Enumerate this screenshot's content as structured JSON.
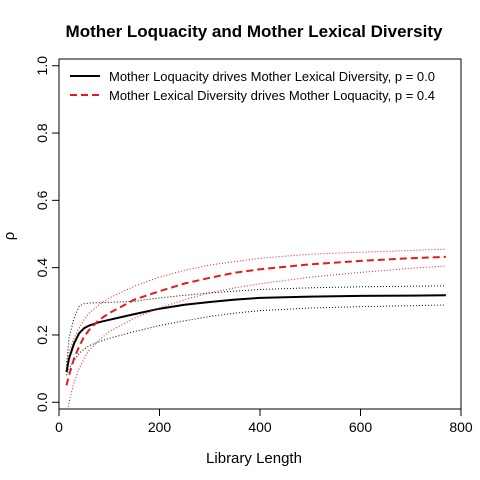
{
  "chart_data": {
    "type": "line",
    "title": "Mother Loquacity and Mother Lexical Diversity",
    "xlabel": "Library Length",
    "ylabel": "ρ",
    "xlim": [
      0,
      800
    ],
    "ylim": [
      -0.02,
      1.02
    ],
    "xticks": [
      0,
      200,
      400,
      600,
      800
    ],
    "yticks": [
      0.0,
      0.2,
      0.4,
      0.6,
      0.8,
      1.0
    ],
    "grid": false,
    "legend_position": "top-left",
    "series": [
      {
        "name": "Mother Loquacity drives Mother Lexical Diversity, p = 0.0",
        "color": "#000000",
        "style": "solid",
        "x": [
          15,
          20,
          30,
          40,
          50,
          60,
          80,
          100,
          150,
          200,
          250,
          300,
          350,
          400,
          500,
          600,
          700,
          770
        ],
        "y": [
          0.09,
          0.13,
          0.175,
          0.205,
          0.22,
          0.228,
          0.238,
          0.245,
          0.262,
          0.278,
          0.29,
          0.298,
          0.305,
          0.31,
          0.314,
          0.316,
          0.317,
          0.318
        ],
        "lower": [
          0.08,
          0.1,
          0.125,
          0.145,
          0.158,
          0.168,
          0.18,
          0.19,
          0.21,
          0.228,
          0.242,
          0.255,
          0.265,
          0.272,
          0.28,
          0.284,
          0.287,
          0.289
        ],
        "upper": [
          0.11,
          0.19,
          0.25,
          0.285,
          0.293,
          0.295,
          0.296,
          0.297,
          0.3,
          0.31,
          0.318,
          0.325,
          0.33,
          0.335,
          0.34,
          0.343,
          0.345,
          0.346
        ]
      },
      {
        "name": "Mother Lexical Diversity drives Mother Loquacity, p = 0.4",
        "color": "#e41a1c",
        "style": "dashed",
        "x": [
          15,
          20,
          30,
          40,
          50,
          60,
          80,
          100,
          150,
          200,
          250,
          300,
          350,
          400,
          500,
          600,
          700,
          770
        ],
        "y": [
          0.05,
          0.08,
          0.13,
          0.165,
          0.195,
          0.215,
          0.245,
          0.265,
          0.305,
          0.33,
          0.353,
          0.37,
          0.385,
          0.395,
          0.41,
          0.42,
          0.428,
          0.432
        ],
        "lower": [
          -0.04,
          0.0,
          0.06,
          0.1,
          0.13,
          0.155,
          0.185,
          0.21,
          0.25,
          0.28,
          0.305,
          0.325,
          0.34,
          0.352,
          0.372,
          0.386,
          0.398,
          0.405
        ],
        "upper": [
          0.12,
          0.15,
          0.19,
          0.22,
          0.245,
          0.265,
          0.29,
          0.31,
          0.345,
          0.372,
          0.392,
          0.408,
          0.418,
          0.428,
          0.44,
          0.446,
          0.451,
          0.455
        ]
      }
    ]
  }
}
